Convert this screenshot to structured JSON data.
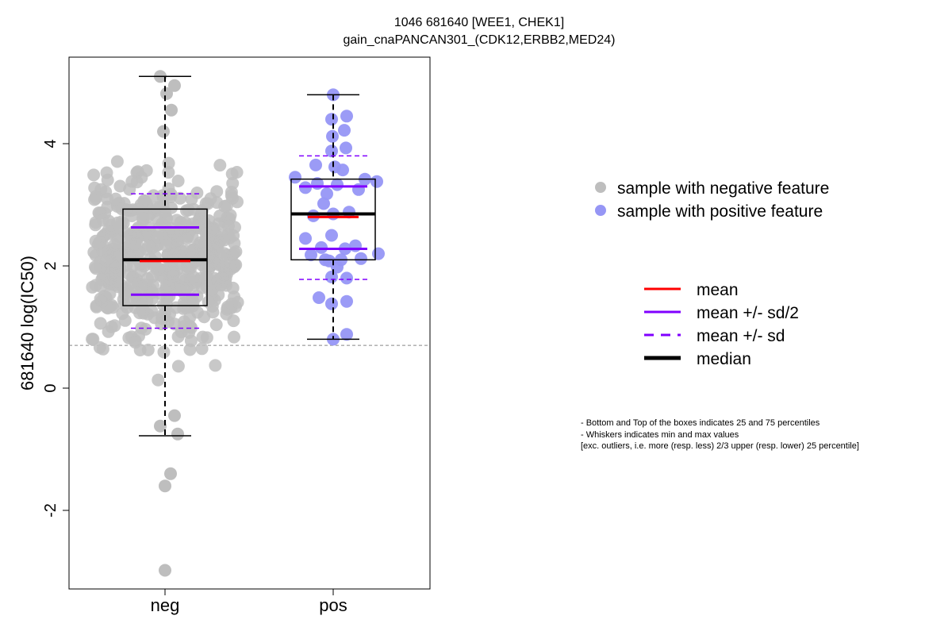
{
  "chart_data": {
    "type": "box",
    "title": "1046 681640 [WEE1, CHEK1]",
    "subtitle": "gain_cnaPANCAN301_(CDK12,ERBB2,MED24)",
    "xlabel": "",
    "ylabel": "681640 log(IC50)",
    "ylim": [
      -3.25,
      5.5
    ],
    "yticks": [
      -2,
      0,
      2,
      4
    ],
    "categories": [
      "neg",
      "pos"
    ],
    "reference_line": 0.7,
    "groups": [
      {
        "category": "neg",
        "color": "#bebebe",
        "min": -0.78,
        "q1": 1.35,
        "median": 2.1,
        "q3": 2.93,
        "max": 5.1,
        "mean": 2.08,
        "mean_minus_half_sd": 1.53,
        "mean_plus_half_sd": 2.63,
        "mean_minus_sd": 0.98,
        "mean_plus_sd": 3.18,
        "outliers": [
          -1.4,
          -1.6,
          -2.98
        ],
        "n_points": 560
      },
      {
        "category": "pos",
        "color": "#9696f5",
        "min": 0.8,
        "q1": 2.1,
        "median": 2.85,
        "q3": 3.42,
        "max": 4.8,
        "mean": 2.8,
        "mean_minus_half_sd": 2.28,
        "mean_plus_half_sd": 3.3,
        "mean_minus_sd": 1.78,
        "mean_plus_sd": 3.8,
        "points": [
          4.8,
          4.45,
          4.4,
          4.22,
          4.12,
          3.93,
          3.88,
          3.65,
          3.62,
          3.57,
          3.45,
          3.42,
          3.38,
          3.35,
          3.33,
          3.28,
          3.25,
          3.18,
          3.02,
          2.88,
          2.85,
          2.82,
          2.5,
          2.45,
          2.33,
          2.3,
          2.28,
          2.2,
          2.18,
          2.12,
          2.1,
          2.1,
          2.08,
          1.98,
          1.82,
          1.8,
          1.48,
          1.42,
          1.38,
          0.88,
          0.8
        ]
      }
    ],
    "legend": {
      "position": "right",
      "points": [
        {
          "label": "sample with negative feature",
          "color": "#bebebe"
        },
        {
          "label": "sample with positive feature",
          "color": "#9696f5"
        }
      ],
      "lines": [
        {
          "label": "mean",
          "color": "#ff0000",
          "style": "solid"
        },
        {
          "label": "mean +/- sd/2",
          "color": "#8000ff",
          "style": "solid"
        },
        {
          "label": "mean +/- sd",
          "color": "#8000ff",
          "style": "dashed"
        },
        {
          "label": "median",
          "color": "#000000",
          "style": "solid-thick"
        }
      ]
    },
    "notes": [
      "- Bottom and Top of the boxes indicates 25 and 75 percentiles",
      "- Whiskers indicates min and max values",
      "[exc. outliers, i.e. more (resp. less) 2/3 upper (resp. lower) 25 percentile]"
    ]
  }
}
